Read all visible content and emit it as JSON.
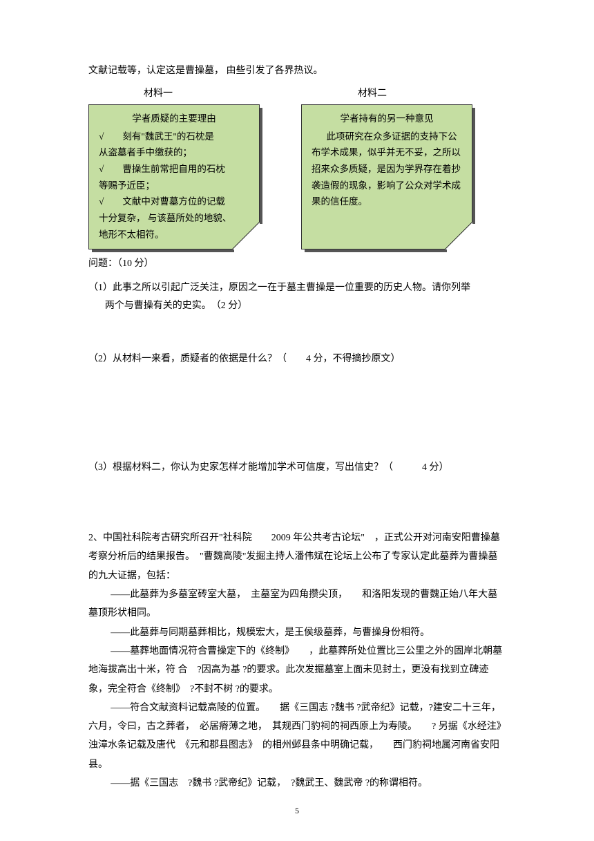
{
  "intro": "文献记载等，认定这是曹操墓，  由些引发了各界热议。",
  "labels": {
    "left": "材料一",
    "right": "材料二"
  },
  "note1": {
    "title": "学者质疑的主要理由",
    "lines": [
      "√　　刻有\"魏武王\"的石枕是",
      "从盗墓者手中缴获的；",
      "√　　曹操生前常把自用的石枕",
      "等赐予近臣；",
      "√　　文献中对曹墓方位的记载",
      "十分复杂，  与该墓所处的地貌、",
      "地形不太相符。"
    ]
  },
  "note2": {
    "title": "学者持有的另一种意见",
    "body": "此项研究在众多证据的支持下公布学术成果，似乎并无不妥，之所以招来众多质疑，是因为学界存在着抄袭造假的现象，影响了公众对学术成果的信任度。"
  },
  "questions": {
    "header": "问题：（10 分）",
    "q1_line1": "（1）此事之所以引起广泛关注，原因之一在于墓主曹操是一位重要的历史人物。请你列举",
    "q1_line2": "两个与曹操有关的史实。　（2 分）",
    "q2": "（2）从材料一来看，质疑者的依据是什么？（　　4 分，不得摘抄原文）",
    "q3": "（3）根据材料二，你认为史家怎样才能增加学术可信度，写出信史？（　　　4 分）"
  },
  "section2": {
    "p1": "2、中国社科院考古研究所召开\"社科院　　2009 年公共考古论坛\"　，正式公开对河南安阳曹操墓考察分析后的结果报告。　\"曹魏高陵\"发掘主持人潘伟斌在论坛上公布了专家认定此墓葬为曹操墓的九大证据，包括：",
    "p2": "——此墓葬为多墓室砖室大墓，　主墓室为四角攒尖顶，　　和洛阳发现的曹魏正始八年大墓墓顶形状相同。",
    "p3": "——此墓葬与同期墓葬相比，规模宏大，是王侯级墓葬，与曹操身份相符。",
    "p4": "——墓葬地面情况符合曹操定下的《终制》　　，此墓葬所处位置比三公里之外的固岸北朝墓地海拔高出十米，符 合　?因高为基 ?的要求。此次发掘墓室上面未见封土，更没有找到立碑迹象，完全符合《终制》　?不封不树 ?的要求。",
    "p5": "——符合文献资料记载高陵的位置。　　据《三国志 ?魏书 ?武帝纪》记载，?建安二十三年，六月，令曰，古之葬者，　必居瘠薄之地，　其规西门豹祠的祠西原上为寿陵。　　? 另据《水经注》浊漳水条记载及唐代　《元和郡县图志》　的相州邺县条中明确记载，　　西门豹祠地属河南省安阳县。",
    "p6": "——据《三国志　?魏书 ?武帝纪》记载，　?魏武王、魏武帝 ?的称谓相符。"
  },
  "pageNumber": "5"
}
